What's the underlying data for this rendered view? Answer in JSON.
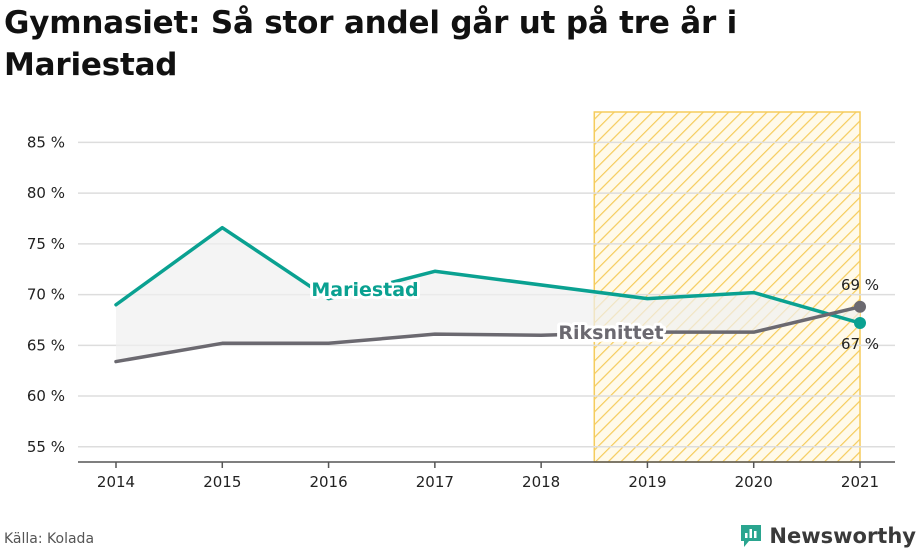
{
  "title": "Gymnasiet: Så stor andel går ut på tre år i Mariestad",
  "source": "Källa: Kolada",
  "brand": {
    "name": "Newsworthy",
    "icon": "chart-logo-icon"
  },
  "colors": {
    "mariestad": "#0aa191",
    "riket": "#6b6970",
    "highlight": "#f5cc5c",
    "grid": "#dddddd",
    "band": "#f0f0f0"
  },
  "chart_data": {
    "type": "line",
    "x": [
      2014,
      2015,
      2016,
      2017,
      2018,
      2019,
      2020,
      2021
    ],
    "ylim": [
      53.5,
      88
    ],
    "yticks": [
      55,
      60,
      65,
      70,
      75,
      80,
      85
    ],
    "ytick_labels": [
      "55 %",
      "60 %",
      "65 %",
      "70 %",
      "75 %",
      "80 %",
      "85 %"
    ],
    "xtick_labels": [
      "2014",
      "2015",
      "2016",
      "2017",
      "2018",
      "2019",
      "2020",
      "2021"
    ],
    "grid": true,
    "highlight_range": [
      2018.5,
      2021
    ],
    "series": [
      {
        "name": "Mariestad",
        "values": [
          69.0,
          76.6,
          69.6,
          72.3,
          null,
          69.6,
          70.2,
          67.2
        ],
        "end_label": "67 %"
      },
      {
        "name": "Riksnittet",
        "values": [
          63.4,
          65.2,
          65.2,
          66.1,
          66.0,
          66.3,
          66.3,
          68.8
        ],
        "end_label": "69 %"
      }
    ]
  }
}
